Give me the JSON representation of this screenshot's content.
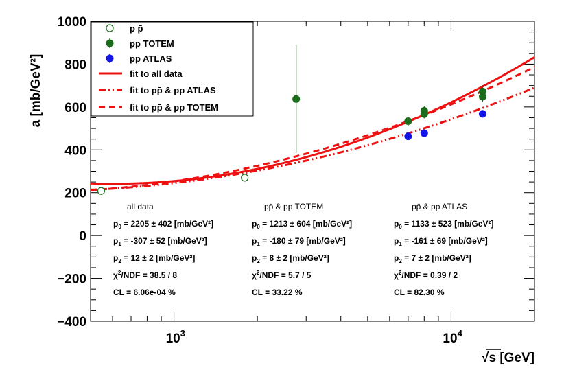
{
  "chart_data": {
    "type": "scatter",
    "title": "",
    "xlabel": "√s [GeV]",
    "ylabel": "a [mb/GeV²]",
    "xscale": "log",
    "xlim": [
      500,
      20000
    ],
    "ylim": [
      -400,
      1000
    ],
    "x_tick_labels": [
      {
        "value": 1000,
        "base": "10",
        "exp": "3"
      },
      {
        "value": 10000,
        "base": "10",
        "exp": "4"
      }
    ],
    "y_ticks": [
      -400,
      -200,
      0,
      200,
      400,
      600,
      800,
      1000
    ],
    "y_tick_labels": [
      "−400",
      "−200",
      "0",
      "200",
      "400",
      "600",
      "800",
      "1000"
    ],
    "colors": {
      "ppbar": "#1a6b1a",
      "totem": "#1a6b1a",
      "atlas": "#1414e6",
      "fit": "#ee1111"
    },
    "series": [
      {
        "name": "p p̄",
        "marker": "open-circle",
        "color": "#1a6b1a",
        "points": [
          {
            "x": 546,
            "y": 208,
            "err": 8
          },
          {
            "x": 1800,
            "y": 270,
            "err": 8
          }
        ]
      },
      {
        "name": "pp TOTEM",
        "marker": "filled-circle",
        "color": "#1a6b1a",
        "points": [
          {
            "x": 2760,
            "y": 637,
            "err": 252
          },
          {
            "x": 7000,
            "y": 534,
            "err": 20
          },
          {
            "x": 8000,
            "y": 582,
            "err": 22
          },
          {
            "x": 8000,
            "y": 567,
            "err": 20
          },
          {
            "x": 13000,
            "y": 672,
            "err": 30
          },
          {
            "x": 13000,
            "y": 648,
            "err": 25
          }
        ]
      },
      {
        "name": "pp ATLAS",
        "marker": "filled-circle",
        "color": "#1414e6",
        "points": [
          {
            "x": 7000,
            "y": 463,
            "err": 10
          },
          {
            "x": 8000,
            "y": 478,
            "err": 10
          },
          {
            "x": 13000,
            "y": 568,
            "err": 10
          }
        ]
      }
    ],
    "fits": [
      {
        "name": "fit to all data",
        "style": "solid",
        "p0": 2205,
        "p1": -307,
        "p2": 12
      },
      {
        "name": "fit to pp̄ & pp ATLAS",
        "style": "dash-dot-dot",
        "p0": 1133,
        "p1": -161,
        "p2": 7
      },
      {
        "name": "fit to pp̄ & pp TOTEM",
        "style": "dashed",
        "p0": 1213,
        "p1": -180,
        "p2": 8
      }
    ],
    "legend": {
      "position": "top-left",
      "entries": [
        {
          "label": "p p̄",
          "kind": "open-circle"
        },
        {
          "label": "pp TOTEM",
          "kind": "filled-green"
        },
        {
          "label": "pp ATLAS",
          "kind": "filled-blue"
        },
        {
          "label": "fit to all data",
          "kind": "solid"
        },
        {
          "label": "fit to pp̄ & pp ATLAS",
          "kind": "dash-dot-dot"
        },
        {
          "label": "fit to pp̄ & pp TOTEM",
          "kind": "dashed"
        }
      ]
    },
    "fit_results": [
      {
        "header": "all data",
        "p0": "2205 ± 402 [mb/GeV²]",
        "p1": "-307 ± 52 [mb/GeV²]",
        "p2": "12 ± 2 [mb/GeV²]",
        "chi2": "38.5 / 8",
        "cl": "CL = 6.06e-04 %"
      },
      {
        "header": "pp̄ & pp TOTEM",
        "p0": "1213 ± 604 [mb/GeV²]",
        "p1": "-180 ± 79 [mb/GeV²]",
        "p2": "8 ± 2 [mb/GeV²]",
        "chi2": "5.7 / 5",
        "cl": "CL = 33.22 %"
      },
      {
        "header": "pp̄ & pp ATLAS",
        "p0": "1133 ± 523 [mb/GeV²]",
        "p1": "-161 ± 69 [mb/GeV²]",
        "p2": "7 ± 2 [mb/GeV²]",
        "chi2": "0.39 / 2",
        "cl": "CL = 82.30 %"
      }
    ]
  }
}
